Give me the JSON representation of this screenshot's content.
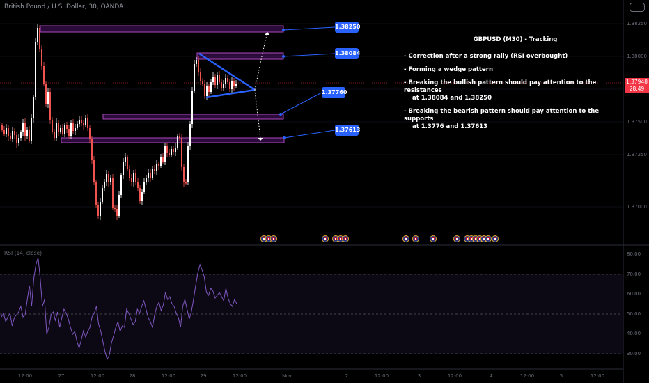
{
  "symbol_title": "British Pound / U.S. Dollar, 30, OANDA",
  "analysis": {
    "title": "GBPUSD (M30) - Tracking",
    "bullets": [
      {
        "line1": "- Correction after a strong rally (RSI overbought)",
        "line2": ""
      },
      {
        "line1": "- Forming a wedge pattern",
        "line2": ""
      },
      {
        "line1": "- Breaking the bullish pattern should pay attention to the resistances",
        "line2": "at 1.38084 and 1.38250"
      },
      {
        "line1": "- Breaking the bearish pattern should pay attention to the supports",
        "line2": "at 1.3776 and 1.37613"
      }
    ]
  },
  "levels": [
    "1.38250",
    "1.38084",
    "1.37760",
    "1.37613"
  ],
  "current_price": {
    "value": "1.37948",
    "countdown": "28:49"
  },
  "price_axis_labels": [
    "1.38250",
    "1.38000",
    "1.37750",
    "1.37500",
    "1.37250",
    "1.37000"
  ],
  "time_axis_labels": [
    "12:00",
    "27",
    "12:00",
    "28",
    "12:00",
    "29",
    "12:00",
    "Nov",
    "2",
    "12:00",
    "3",
    "12:00",
    "4",
    "12:00",
    "5",
    "12:00"
  ],
  "rsi": {
    "title": "RSI (14, close)",
    "axis_labels": [
      "80.00",
      "70.00",
      "60.00",
      "50.00",
      "40.00",
      "30.00"
    ],
    "upper_band": 70,
    "lower_band": 30
  },
  "colors": {
    "background": "#000000",
    "up_candle": "#ffffff",
    "down_candle": "#ef5350",
    "zone_fill": "#7b1fa2",
    "zone_border": "#ab47bc",
    "annotation": "#2962ff",
    "rsi_line": "#7e57c2",
    "price_tag": "#f23645"
  },
  "icons": [
    "screenshot-icon",
    "uk-flag-event-icon",
    "us-flag-event-icon"
  ]
}
